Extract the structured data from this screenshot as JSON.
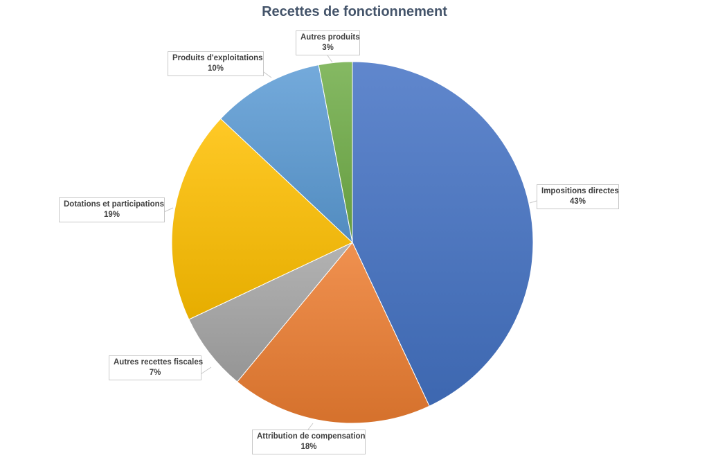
{
  "chart_data": {
    "type": "pie",
    "title": "Recettes de fonctionnement",
    "start": "top",
    "direction": "clockwise",
    "slices": [
      {
        "label": "Impositions directes",
        "value": 43,
        "display": "43%",
        "color": "#4472C4"
      },
      {
        "label": "Attribution de compensation",
        "value": 18,
        "display": "18%",
        "color": "#ED7D31"
      },
      {
        "label": "Autres recettes fiscales",
        "value": 7,
        "display": "7%",
        "color": "#A5A5A5"
      },
      {
        "label": "Dotations et participations",
        "value": 19,
        "display": "19%",
        "color": "#FFC000"
      },
      {
        "label": "Produits d'exploitations",
        "value": 10,
        "display": "10%",
        "color": "#5B9BD5"
      },
      {
        "label": "Autres produits",
        "value": 3,
        "display": "3%",
        "color": "#70AD47"
      }
    ]
  }
}
